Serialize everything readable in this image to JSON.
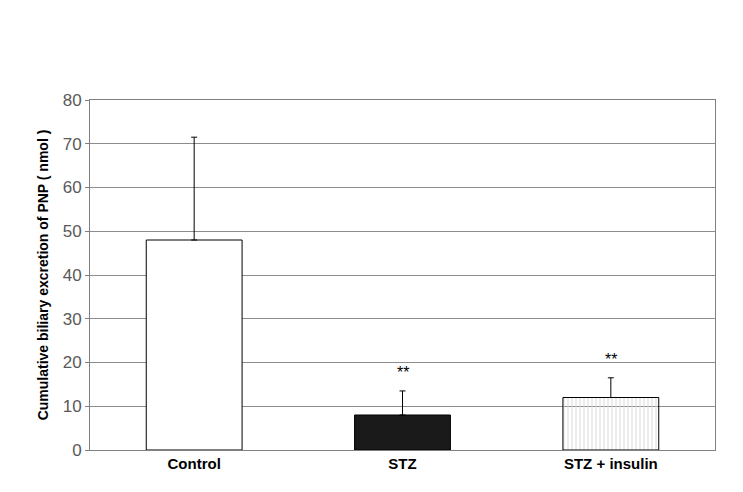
{
  "chart_data": {
    "type": "bar",
    "y_label": "Cumulative biliary excretion of PNP ( nmol )",
    "categories": [
      "Control",
      "STZ",
      "STZ + insulin"
    ],
    "values": [
      48,
      8,
      12
    ],
    "errors": [
      23.5,
      5.5,
      4.5
    ],
    "colors": [
      "#ffffff",
      "#1a1a1a",
      "#d9d9d9"
    ],
    "annotations": [
      {
        "category": "STZ",
        "text": "**"
      },
      {
        "category": "STZ + insulin",
        "text": "**"
      }
    ],
    "ylim": [
      0,
      80
    ],
    "yticks": [
      0,
      10,
      20,
      30,
      40,
      50,
      60,
      70,
      80
    ],
    "grid": true
  }
}
